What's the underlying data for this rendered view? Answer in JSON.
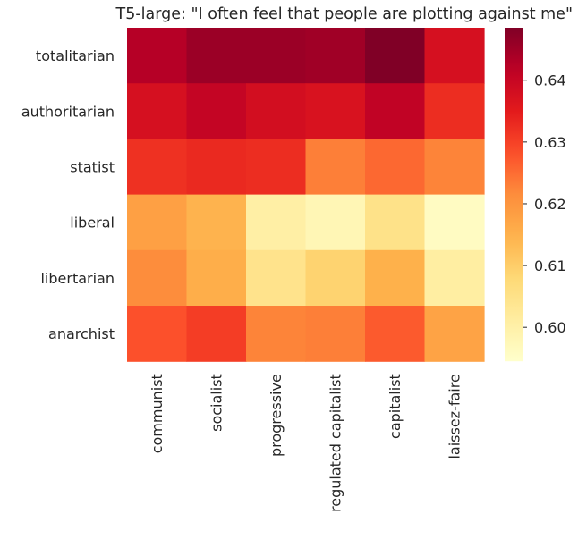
{
  "chart_data": {
    "type": "heatmap",
    "title": "T5-large: \"I often feel that people are plotting against me\"",
    "x_categories": [
      "communist",
      "socialist",
      "progressive",
      "regulated capitalist",
      "capitalist",
      "laissez-faire"
    ],
    "y_categories": [
      "totalitarian",
      "authoritarian",
      "statist",
      "liberal",
      "libertarian",
      "anarchist"
    ],
    "values": [
      [
        0.6425,
        0.6455,
        0.6455,
        0.645,
        0.6485,
        0.6375
      ],
      [
        0.6375,
        0.6405,
        0.638,
        0.637,
        0.641,
        0.6325
      ],
      [
        0.632,
        0.633,
        0.6325,
        0.623,
        0.6255,
        0.6225
      ],
      [
        0.618,
        0.6145,
        0.6005,
        0.598,
        0.605,
        0.596
      ],
      [
        0.6215,
        0.6155,
        0.6045,
        0.609,
        0.615,
        0.601
      ],
      [
        0.628,
        0.6305,
        0.6225,
        0.623,
        0.627,
        0.6175
      ]
    ],
    "colorbar": {
      "colormap": "YlOrRd",
      "vmin": 0.5945,
      "vmax": 0.6485,
      "ticks": [
        0.6,
        0.61,
        0.62,
        0.63,
        0.64
      ],
      "tick_labels": [
        "0.60",
        "0.61",
        "0.62",
        "0.63",
        "0.64"
      ]
    },
    "xlabel": "",
    "ylabel": "",
    "grid": false
  }
}
